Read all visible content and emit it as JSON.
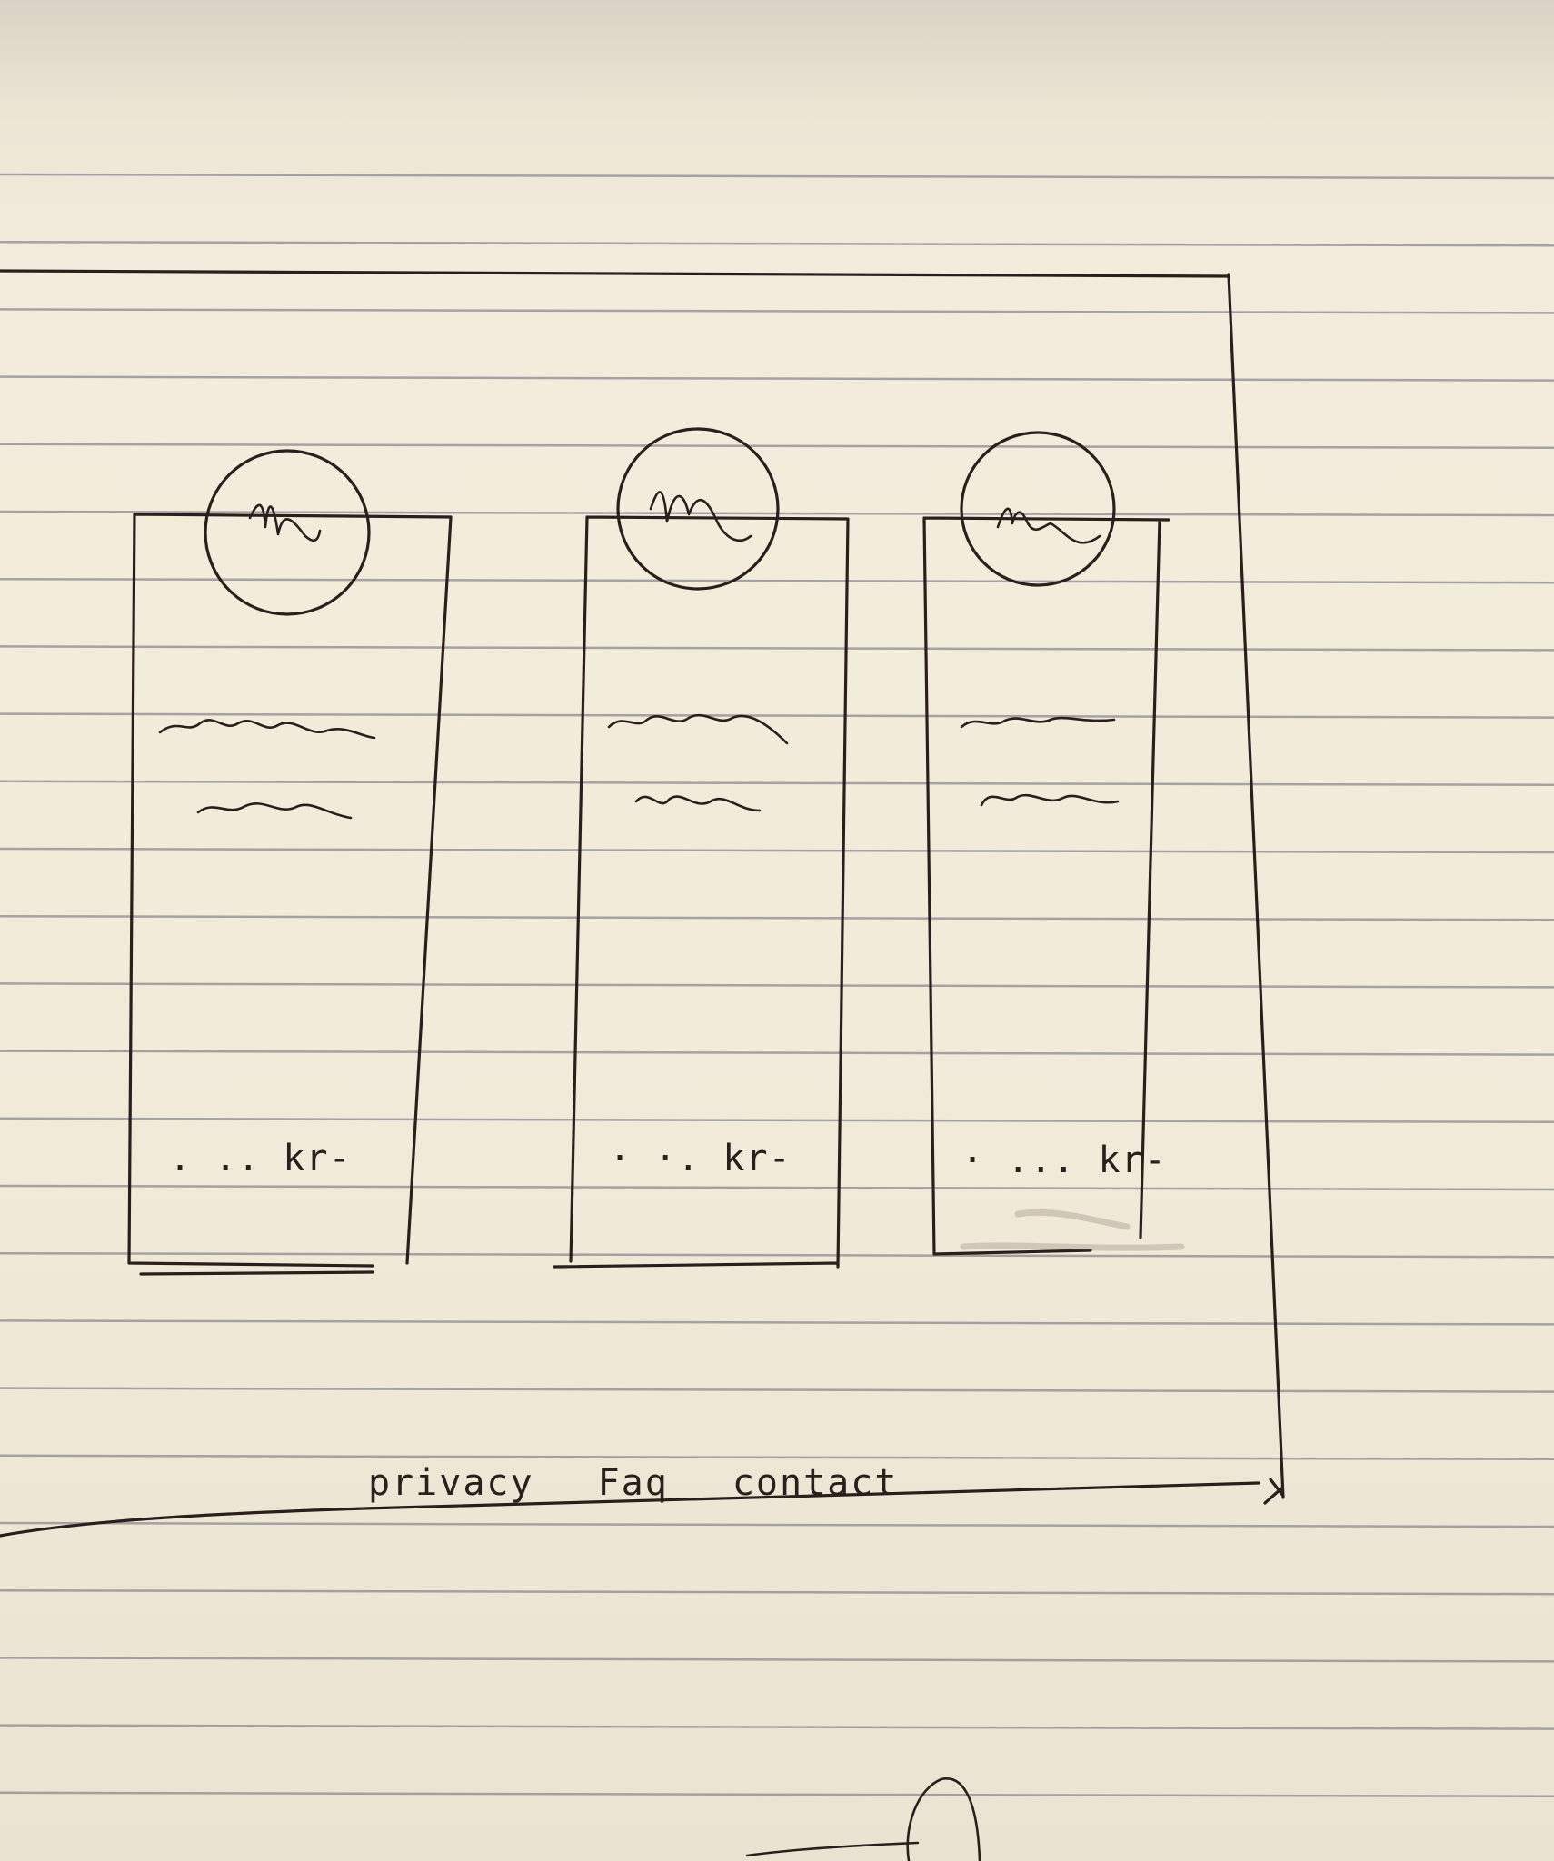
{
  "cards": [
    {
      "price_text": ". .. kr-"
    },
    {
      "price_text": "· ·. kr-"
    },
    {
      "price_text": "· ... kr-"
    }
  ],
  "footer": {
    "links": [
      "privacy",
      "Faq",
      "contact"
    ]
  },
  "icons": {
    "card_avatar": "avatar-placeholder-icon",
    "text_line": "scribble-text-placeholder"
  },
  "colors": {
    "paper": "#f2ebda",
    "ink": "#2a1f1c",
    "rule_line": "#8c8a92"
  }
}
